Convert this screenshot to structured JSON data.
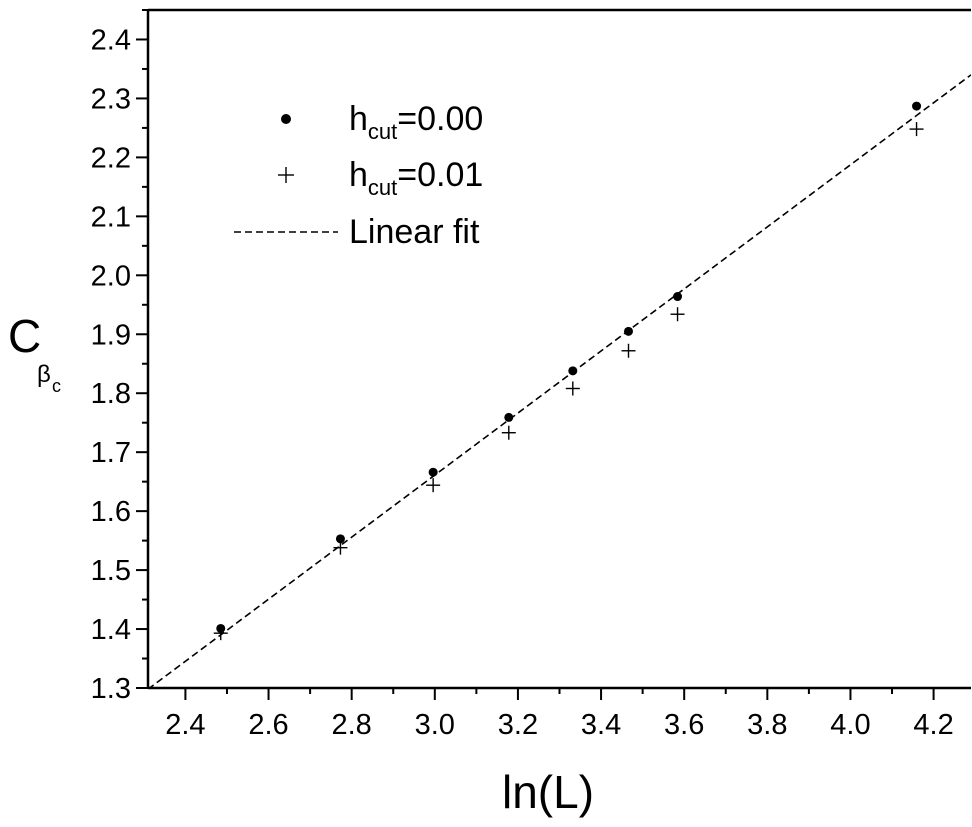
{
  "chart_data": {
    "type": "scatter",
    "title": "",
    "xlabel": "ln(L)",
    "ylabel": {
      "main": "C",
      "sub": "β",
      "subsub": "c"
    },
    "xlim": [
      2.31,
      4.29
    ],
    "ylim": [
      1.3,
      2.45
    ],
    "x_ticks": [
      "2.4",
      "2.6",
      "2.8",
      "3.0",
      "3.2",
      "3.4",
      "3.6",
      "3.8",
      "4.0",
      "4.2"
    ],
    "y_ticks": [
      "1.3",
      "1.4",
      "1.5",
      "1.6",
      "1.7",
      "1.8",
      "1.9",
      "2.0",
      "2.1",
      "2.2",
      "2.3",
      "2.4"
    ],
    "grid": false,
    "legend_position": "top-left",
    "series": [
      {
        "name": "h_cut=0.00",
        "legend": {
          "main": "h",
          "sub": "cut",
          "rest": "=0.00"
        },
        "marker": "dot",
        "points": [
          [
            2.485,
            1.401
          ],
          [
            2.773,
            1.553
          ],
          [
            2.996,
            1.666
          ],
          [
            3.178,
            1.759
          ],
          [
            3.332,
            1.838
          ],
          [
            3.466,
            1.905
          ],
          [
            3.584,
            1.964
          ],
          [
            4.159,
            2.287
          ]
        ]
      },
      {
        "name": "h_cut=0.01",
        "legend": {
          "main": "h",
          "sub": "cut",
          "rest": "=0.01"
        },
        "marker": "plus",
        "points": [
          [
            2.485,
            1.393
          ],
          [
            2.773,
            1.538
          ],
          [
            2.996,
            1.644
          ],
          [
            3.178,
            1.733
          ],
          [
            3.332,
            1.808
          ],
          [
            3.466,
            1.872
          ],
          [
            3.584,
            1.934
          ],
          [
            4.159,
            2.248
          ]
        ]
      },
      {
        "name": "Linear fit",
        "legend": {
          "main": "Linear fit",
          "sub": "",
          "rest": ""
        },
        "marker": "dashed-line",
        "line": [
          [
            2.31,
            1.298
          ],
          [
            4.29,
            2.34
          ]
        ]
      }
    ]
  }
}
